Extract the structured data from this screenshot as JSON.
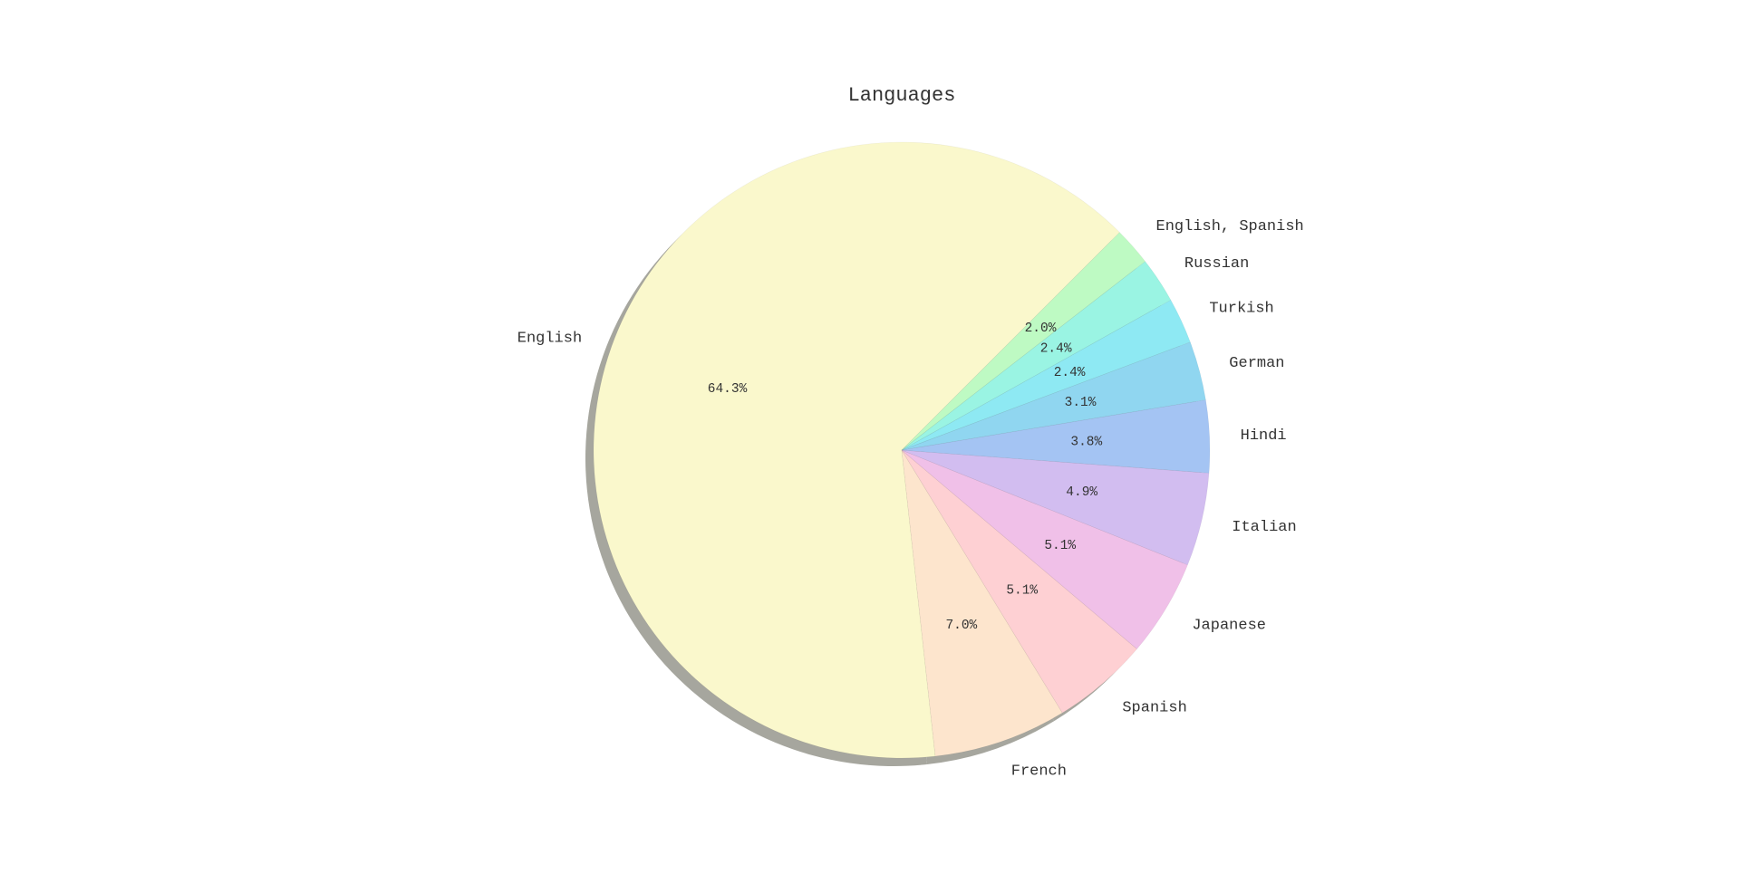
{
  "chart_data": {
    "type": "pie",
    "title": "Languages",
    "shadow": true,
    "start_angle_deg": 45,
    "direction": "counterclockwise",
    "slices": [
      {
        "label": "English",
        "value": 64.3,
        "pct_label": "64.3%",
        "color": "#faf8cc"
      },
      {
        "label": "French",
        "value": 7.0,
        "pct_label": "7.0%",
        "color": "#fde5cd"
      },
      {
        "label": "Spanish",
        "value": 5.1,
        "pct_label": "5.1%",
        "color": "#fed0d3"
      },
      {
        "label": "Japanese",
        "value": 5.1,
        "pct_label": "5.1%",
        "color": "#f0c0e8"
      },
      {
        "label": "Italian",
        "value": 4.9,
        "pct_label": "4.9%",
        "color": "#d2bdf0"
      },
      {
        "label": "Hindi",
        "value": 3.8,
        "pct_label": "3.8%",
        "color": "#a4c4f3"
      },
      {
        "label": "German",
        "value": 3.1,
        "pct_label": "3.1%",
        "color": "#90d6f0"
      },
      {
        "label": "Turkish",
        "value": 2.4,
        "pct_label": "2.4%",
        "color": "#8ee9f3"
      },
      {
        "label": "Russian",
        "value": 2.4,
        "pct_label": "2.4%",
        "color": "#9af4e3"
      },
      {
        "label": "English, Spanish",
        "value": 2.0,
        "pct_label": "2.0%",
        "color": "#befac3"
      }
    ]
  }
}
